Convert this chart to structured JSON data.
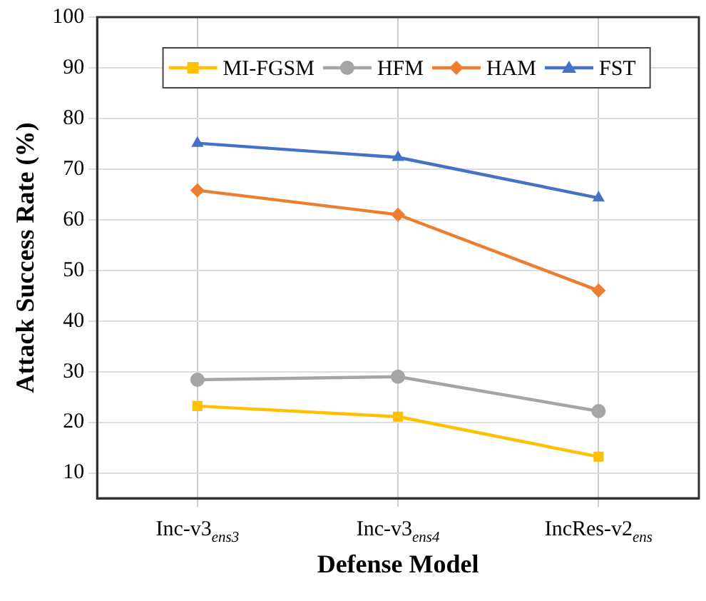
{
  "chart_data": {
    "type": "line",
    "xlabel": "Defense Model",
    "ylabel": "Attack Success Rate (%)",
    "categories": [
      "Inc-v3$_{ens3}$",
      "Inc-v3$_{ens4}$",
      "IncRes-v2$_{ens}$"
    ],
    "series": [
      {
        "name": "MI-FGSM",
        "color": "#ffc000",
        "marker": "square",
        "values": [
          23.2,
          21.1,
          13.2
        ]
      },
      {
        "name": "HFM",
        "color": "#a5a5a5",
        "marker": "circle",
        "values": [
          28.4,
          29.0,
          22.2
        ]
      },
      {
        "name": "HAM",
        "color": "#ed7d31",
        "marker": "diamond",
        "values": [
          65.8,
          61.0,
          46.0
        ]
      },
      {
        "name": "FST",
        "color": "#4472c4",
        "marker": "triangle",
        "values": [
          75.1,
          72.3,
          64.3
        ]
      }
    ],
    "ylim": [
      5,
      100
    ],
    "yticks": [
      10,
      20,
      30,
      40,
      50,
      60,
      70,
      80,
      90,
      100
    ],
    "grid": true,
    "legend": "top",
    "line_style": "solid"
  }
}
